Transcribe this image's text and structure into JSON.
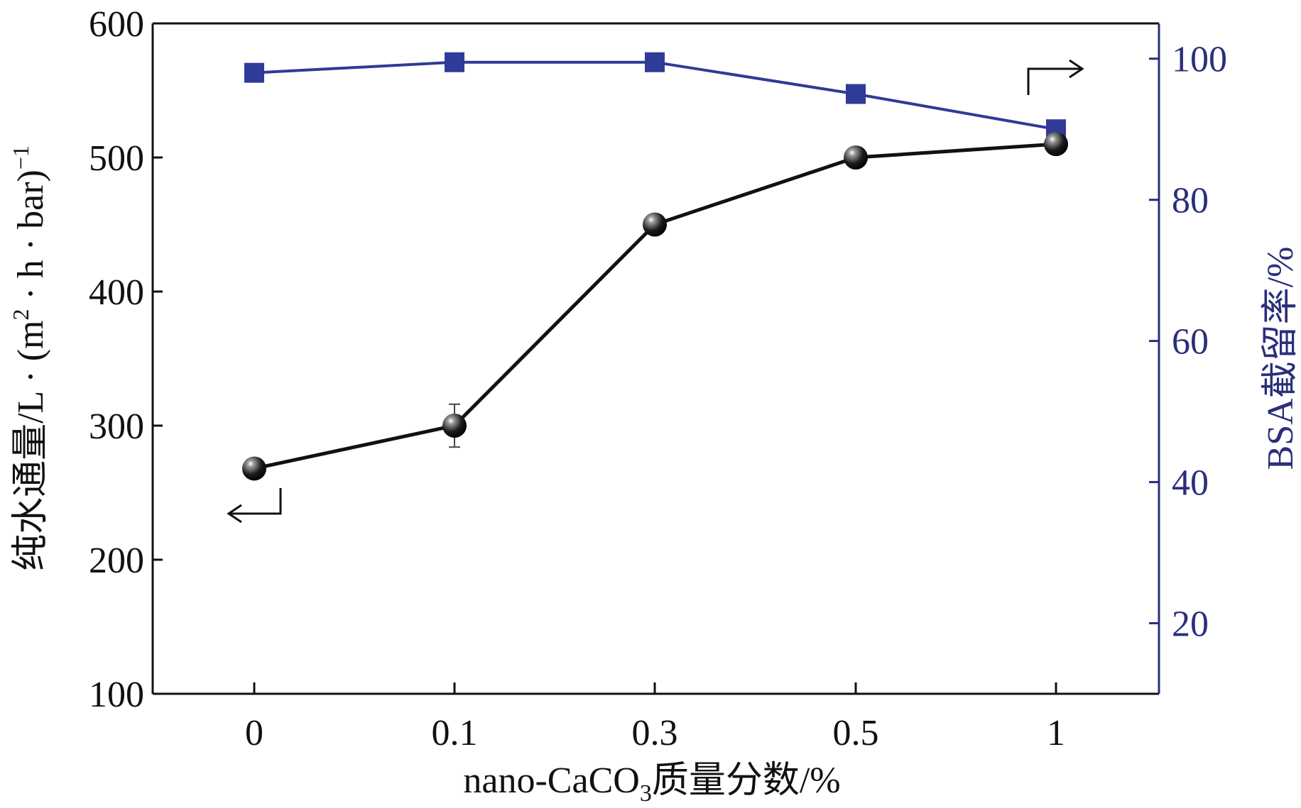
{
  "chart_data": {
    "type": "line",
    "categories": [
      "0",
      "0.1",
      "0.3",
      "0.5",
      "1"
    ],
    "xlabel": {
      "main": "nano-CaCO",
      "sub": "3",
      "tail": "质量分数/%"
    },
    "ylabel_left": {
      "prefix": "纯水通量/L · (m",
      "sup1": "2",
      "middle": " · h · bar)",
      "sup2": "−1"
    },
    "ylabel_right": "BSA截留率/%",
    "y_left": {
      "range": [
        100,
        600
      ],
      "ticks": [
        100,
        200,
        300,
        400,
        500,
        600
      ]
    },
    "y_right": {
      "range": [
        10,
        105
      ],
      "ticks": [
        20,
        40,
        60,
        80,
        100
      ]
    },
    "series": [
      {
        "name": "纯水通量",
        "axis": "left",
        "values": [
          268,
          300,
          450,
          500,
          510
        ],
        "error": [
          0,
          16,
          0,
          0,
          0
        ],
        "color": "#111111",
        "marker": "sphere"
      },
      {
        "name": "BSA截留率",
        "axis": "right",
        "values": [
          98,
          99.5,
          99.5,
          95,
          90
        ],
        "color": "#2f3b96",
        "marker": "square"
      }
    ],
    "annotations": [
      "left-arrow-to-left-axis",
      "right-arrow-to-right-axis"
    ],
    "colors": {
      "left_axis": "#111111",
      "right_axis": "#2a2f7a",
      "blue_series": "#2f3b96"
    }
  }
}
